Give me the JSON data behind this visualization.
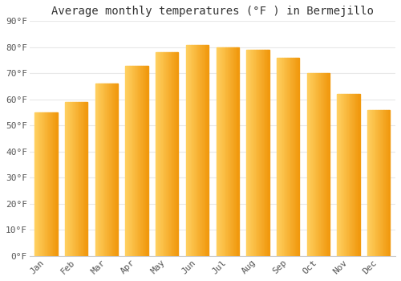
{
  "months": [
    "Jan",
    "Feb",
    "Mar",
    "Apr",
    "May",
    "Jun",
    "Jul",
    "Aug",
    "Sep",
    "Oct",
    "Nov",
    "Dec"
  ],
  "values": [
    55,
    59,
    66,
    73,
    78,
    81,
    80,
    79,
    76,
    70,
    62,
    56
  ],
  "bar_color_left": "#FFBE1E",
  "bar_color_right": "#F0A010",
  "bar_color_face": "#FFB700",
  "title": "Average monthly temperatures (°F ) in Bermejillo",
  "ylim": [
    0,
    90
  ],
  "yticks": [
    0,
    10,
    20,
    30,
    40,
    50,
    60,
    70,
    80,
    90
  ],
  "ytick_labels": [
    "0°F",
    "10°F",
    "20°F",
    "30°F",
    "40°F",
    "50°F",
    "60°F",
    "70°F",
    "80°F",
    "90°F"
  ],
  "background_color": "#ffffff",
  "plot_bg_color": "#ffffff",
  "grid_color": "#e8e8e8",
  "title_fontsize": 10,
  "tick_fontsize": 8,
  "bar_width": 0.75
}
